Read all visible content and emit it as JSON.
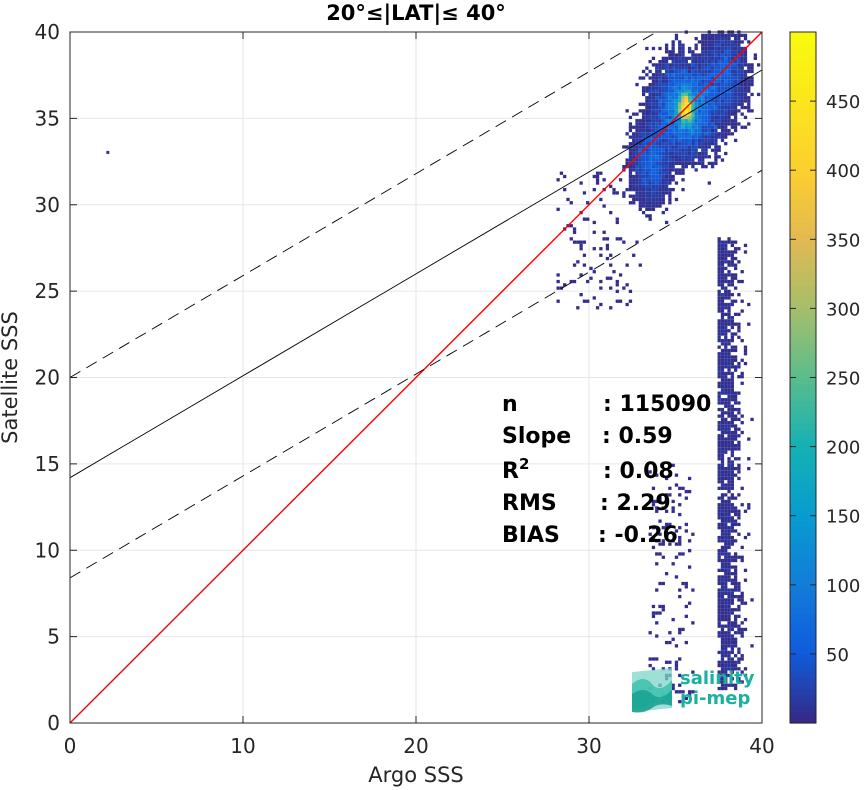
{
  "chart_data": {
    "type": "heatmap",
    "title": "20°≤|LAT|≤ 40°",
    "xlabel": "Argo SSS",
    "ylabel": "Satellite SSS",
    "xlim": [
      0,
      40
    ],
    "ylim": [
      0,
      40
    ],
    "xticks": [
      "0",
      "10",
      "20",
      "30",
      "40"
    ],
    "yticks": [
      "0",
      "5",
      "10",
      "15",
      "20",
      "25",
      "30",
      "35",
      "40"
    ],
    "grid": true,
    "colorbar": {
      "range": [
        0,
        500
      ],
      "ticks": [
        "50",
        "100",
        "150",
        "200",
        "250",
        "300",
        "350",
        "400",
        "450"
      ],
      "colormap": "parula"
    },
    "density_peak": {
      "x": 35.6,
      "y": 35.6,
      "count": 490
    },
    "lines": [
      {
        "kind": "one-to-one",
        "color": "#ff0000",
        "slope": 1,
        "intercept": 0
      },
      {
        "kind": "regression-fit",
        "color": "#000000",
        "slope": 0.59,
        "intercept": 14.2
      },
      {
        "kind": "fit-plus-offset",
        "color": "#000000",
        "dash": "dashed",
        "slope": 0.59,
        "intercept": 20.0
      },
      {
        "kind": "fit-minus-offset",
        "color": "#000000",
        "dash": "dashed",
        "slope": 0.59,
        "intercept": 8.4
      }
    ],
    "stats": [
      {
        "label": "n",
        "value": ": 115090"
      },
      {
        "label": "Slope",
        "value": ": 0.59"
      },
      {
        "label": "R",
        "sup": "2",
        "value": ": 0.08"
      },
      {
        "label": "RMS",
        "value": ": 2.29"
      },
      {
        "label": "BIAS",
        "value": ": -0.26"
      }
    ],
    "outlier_point": {
      "x": 2.1,
      "y": 33.0
    }
  },
  "logo": {
    "line1": "salinity",
    "line2": "pi-mep"
  },
  "colors": {
    "one_to_one": "#ff0000",
    "fit": "#000000",
    "logo": "#1bb0a0"
  }
}
